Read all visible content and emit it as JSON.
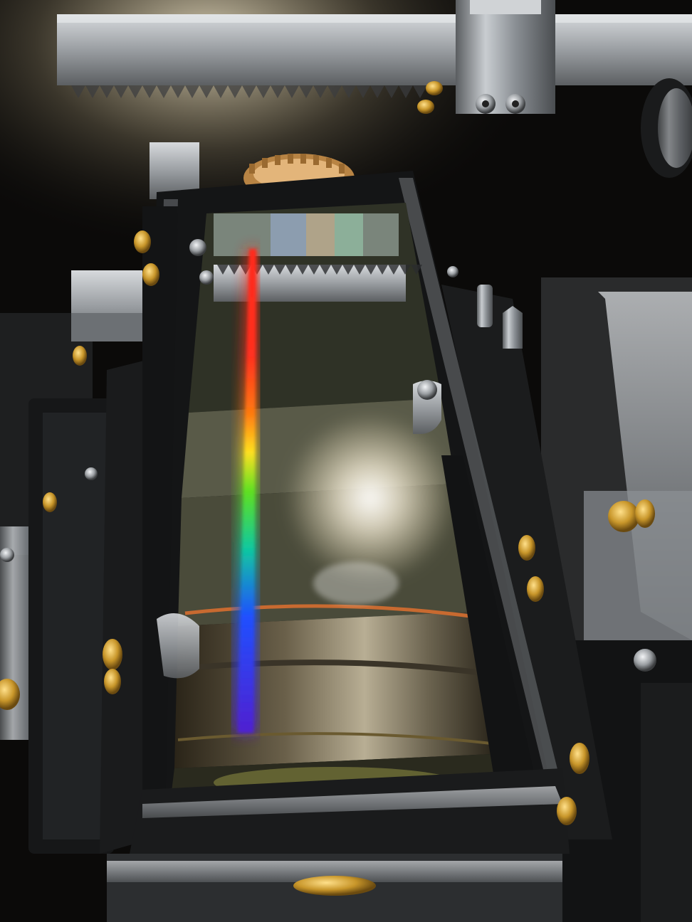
{
  "photo": {
    "subject": "spectrometer-diffraction-grating",
    "spectrum_colors": [
      "#ff2a1a",
      "#ff7a10",
      "#ffe020",
      "#60e020",
      "#10c8a0",
      "#2050ff",
      "#5020d0"
    ],
    "metal_color": "#8a8f94",
    "brass_color": "#c8962a",
    "frame_color": "#141516",
    "background_color": "#0a0908"
  }
}
